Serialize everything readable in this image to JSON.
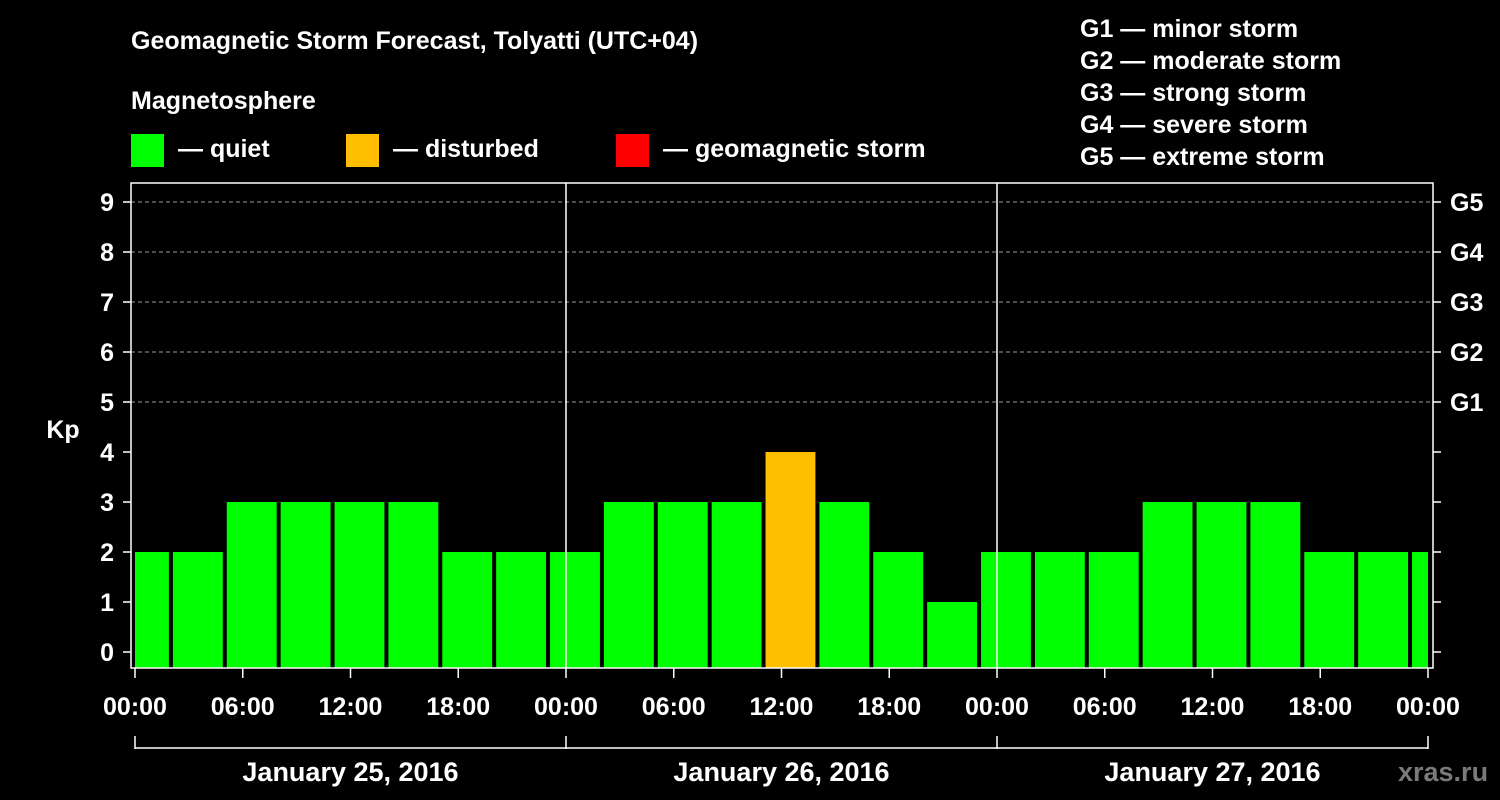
{
  "chart_data": {
    "type": "bar",
    "title": "Geomagnetic Storm Forecast, Tolyatti (UTC+04)",
    "ylabel": "Kp",
    "ylim": [
      0,
      9
    ],
    "yticks": [
      "0",
      "1",
      "2",
      "3",
      "4",
      "5",
      "6",
      "7",
      "8",
      "9"
    ],
    "right_axis_labels": [
      {
        "kp": 5,
        "label": "G1"
      },
      {
        "kp": 6,
        "label": "G2"
      },
      {
        "kp": 7,
        "label": "G3"
      },
      {
        "kp": 8,
        "label": "G4"
      },
      {
        "kp": 9,
        "label": "G5"
      }
    ],
    "legend_title": "Magnetosphere",
    "legend": [
      {
        "label": "— quiet",
        "color": "#00ff00"
      },
      {
        "label": "— disturbed",
        "color": "#ffbf00"
      },
      {
        "label": "— geomagnetic storm",
        "color": "#ff0000"
      }
    ],
    "storm_scale": [
      "G1 — minor storm",
      "G2 — moderate storm",
      "G3 — strong storm",
      "G4 — severe storm",
      "G5 — extreme storm"
    ],
    "xticks": [
      "00:00",
      "06:00",
      "12:00",
      "18:00",
      "00:00",
      "06:00",
      "12:00",
      "18:00",
      "00:00",
      "06:00",
      "12:00",
      "18:00",
      "00:00"
    ],
    "days": [
      "January 25, 2016",
      "January 26, 2016",
      "January 27, 2016"
    ],
    "x_range_hours": [
      0,
      72
    ],
    "interval_hours": 3,
    "x_start_hours": -1,
    "values": [
      2,
      2,
      3,
      3,
      3,
      3,
      2,
      2,
      2,
      3,
      3,
      3,
      4,
      3,
      2,
      1,
      2,
      2,
      2,
      3,
      3,
      3,
      2,
      2,
      2
    ],
    "statuses": [
      "quiet",
      "quiet",
      "quiet",
      "quiet",
      "quiet",
      "quiet",
      "quiet",
      "quiet",
      "quiet",
      "quiet",
      "quiet",
      "quiet",
      "disturbed",
      "quiet",
      "quiet",
      "quiet",
      "quiet",
      "quiet",
      "quiet",
      "quiet",
      "quiet",
      "quiet",
      "quiet",
      "quiet",
      "quiet"
    ],
    "status_colors": {
      "quiet": "#00ff00",
      "disturbed": "#ffbf00",
      "storm": "#ff0000"
    },
    "watermark": "xras.ru"
  }
}
